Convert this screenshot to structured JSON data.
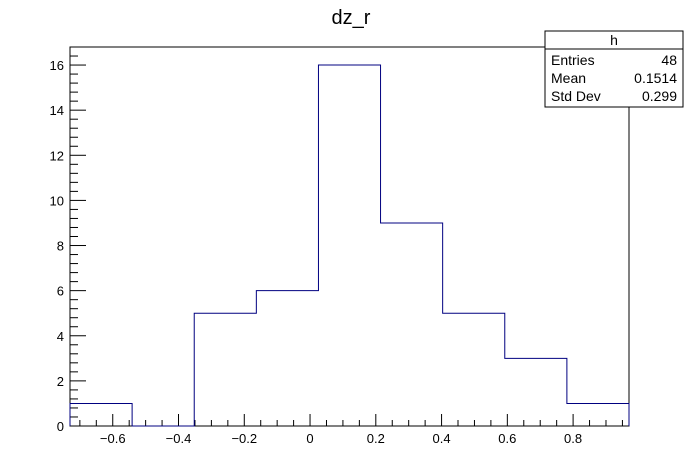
{
  "chart_data": {
    "type": "bar",
    "title": "dz_r",
    "xlabel": "",
    "ylabel": "",
    "xlim": [
      -0.73,
      0.97
    ],
    "ylim": [
      0,
      16.8
    ],
    "bin_edges": [
      -0.73,
      -0.5411,
      -0.3522,
      -0.1633,
      0.0256,
      0.2144,
      0.4033,
      0.5922,
      0.7811,
      0.97
    ],
    "values": [
      1,
      0,
      5,
      6,
      16,
      9,
      5,
      3,
      1
    ],
    "x_tick_labels": [
      "−0.6",
      "−0.4",
      "−0.2",
      "0",
      "0.2",
      "0.4",
      "0.6",
      "0.8"
    ],
    "x_tick_values": [
      -0.6,
      -0.4,
      -0.2,
      0,
      0.2,
      0.4,
      0.6,
      0.8
    ],
    "y_tick_labels": [
      "0",
      "2",
      "4",
      "6",
      "8",
      "10",
      "12",
      "14",
      "16"
    ],
    "y_tick_values": [
      0,
      2,
      4,
      6,
      8,
      10,
      12,
      14,
      16
    ],
    "line_color": "#000080",
    "legend": {
      "title": "h",
      "rows": [
        {
          "label": "Entries",
          "value": "48"
        },
        {
          "label": "Mean",
          "value": "0.1514"
        },
        {
          "label": "Std Dev",
          "value": "0.299"
        }
      ]
    }
  }
}
